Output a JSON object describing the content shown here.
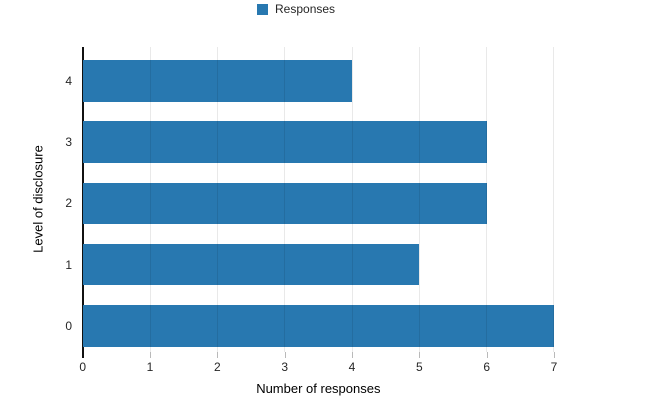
{
  "chart_data": {
    "type": "bar",
    "orientation": "horizontal",
    "title": "",
    "categories": [
      "4",
      "3",
      "2",
      "1",
      "0"
    ],
    "values": [
      4,
      6,
      6,
      5,
      7
    ],
    "series": [
      {
        "name": "Responses",
        "values": [
          4,
          6,
          6,
          5,
          7
        ]
      }
    ],
    "xlabel": "Number of responses",
    "ylabel": "Level of disclosure",
    "xticks": [
      0,
      1,
      2,
      3,
      4,
      5,
      6,
      7
    ],
    "xlim": [
      0,
      7
    ],
    "grid": "vertical-only",
    "legend": {
      "label": "Responses",
      "position": "top-center"
    },
    "colors": {
      "bar": "#2878b0",
      "axis_line": "#111111",
      "gridline": "rgba(0,0,0,0.085)",
      "tick_mark": "#b9b9b9",
      "text": "#262626"
    }
  }
}
